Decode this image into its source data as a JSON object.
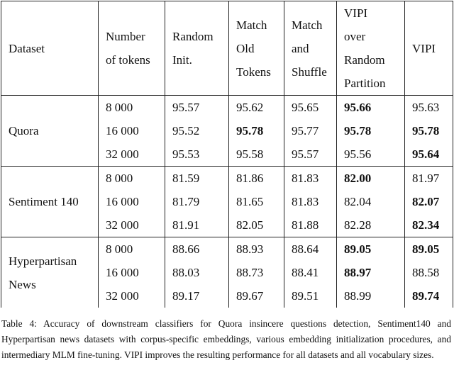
{
  "table": {
    "header": [
      [
        "Dataset"
      ],
      [
        "Number",
        "of tokens"
      ],
      [
        "Random",
        "Init."
      ],
      [
        "Match",
        "Old",
        "Tokens"
      ],
      [
        "Match",
        "and",
        "Shuffle"
      ],
      [
        "VIPI",
        "over",
        "Random",
        "Partition"
      ],
      [
        "VIPI"
      ]
    ],
    "groups": [
      {
        "dataset": [
          "Quora"
        ],
        "rows": [
          {
            "cells": [
              "8 000",
              "95.57",
              "95.62",
              "95.65",
              "95.66",
              "95.63"
            ],
            "bold": [
              4
            ]
          },
          {
            "cells": [
              "16 000",
              "95.52",
              "95.78",
              "95.77",
              "95.78",
              "95.78"
            ],
            "bold": [
              2,
              4,
              5
            ]
          },
          {
            "cells": [
              "32 000",
              "95.53",
              "95.58",
              "95.57",
              "95.56",
              "95.64"
            ],
            "bold": [
              5
            ]
          }
        ]
      },
      {
        "dataset": [
          "Sentiment 140"
        ],
        "rows": [
          {
            "cells": [
              "8 000",
              "81.59",
              "81.86",
              "81.83",
              "82.00",
              "81.97"
            ],
            "bold": [
              4
            ]
          },
          {
            "cells": [
              "16 000",
              "81.79",
              "81.65",
              "81.83",
              "82.04",
              "82.07"
            ],
            "bold": [
              5
            ]
          },
          {
            "cells": [
              "32 000",
              "81.91",
              "82.05",
              "81.88",
              "82.28",
              "82.34"
            ],
            "bold": [
              5
            ]
          }
        ]
      },
      {
        "dataset": [
          "Hyperpartisan",
          "News"
        ],
        "rows": [
          {
            "cells": [
              "8 000",
              "88.66",
              "88.93",
              "88.64",
              "89.05",
              "89.05"
            ],
            "bold": [
              4,
              5
            ]
          },
          {
            "cells": [
              "16 000",
              "88.03",
              "88.73",
              "88.41",
              "88.97",
              "88.58"
            ],
            "bold": [
              4
            ]
          },
          {
            "cells": [
              "32 000",
              "89.17",
              "89.67",
              "89.51",
              "88.99",
              "89.74"
            ],
            "bold": [
              5
            ]
          }
        ]
      }
    ]
  },
  "caption": "Table 4: Accuracy of downstream classifiers for Quora insincere questions detection, Sentiment140 and Hyperpartisan news datasets with corpus-specific embeddings, various embedding initialization procedures, and intermediary MLM fine-tuning. VIPI improves the resulting performance for all datasets and all vocabulary sizes."
}
